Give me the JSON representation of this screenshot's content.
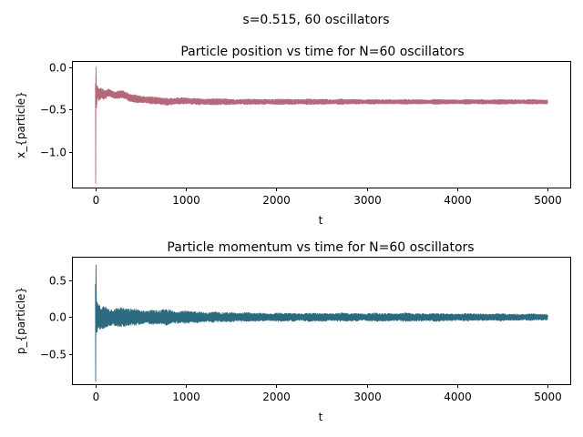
{
  "figure": {
    "suptitle": "s=0.515, 60 oscillators"
  },
  "chart_data": [
    {
      "type": "line",
      "title": "Particle position vs time for N=60 oscillators",
      "xlabel": "t",
      "ylabel": "x_{particle}",
      "xlim": [
        -250,
        5250
      ],
      "ylim": [
        -1.42,
        0.06
      ],
      "xticks": [
        0,
        1000,
        2000,
        3000,
        4000,
        5000
      ],
      "xtick_labels": [
        "0",
        "1000",
        "2000",
        "3000",
        "4000",
        "5000"
      ],
      "yticks": [
        0.0,
        -0.5,
        -1.0
      ],
      "ytick_labels": [
        "0.0",
        "−0.5",
        "−1.0"
      ],
      "grid": false,
      "series": [
        {
          "color": "#b5687a",
          "t_range": [
            0,
            5000
          ],
          "envelope": {
            "t": [
              0,
              5,
              10,
              20,
              40,
              60,
              100,
              150,
              200,
              300,
              400,
              500,
              600,
              700,
              800,
              900,
              1000,
              1200,
              1400,
              1600,
              1800,
              2000,
              2500,
              3000,
              3500,
              4000,
              4500,
              5000
            ],
            "mean": [
              -0.7,
              -0.5,
              -0.35,
              -0.3,
              -0.33,
              -0.31,
              -0.33,
              -0.3,
              -0.33,
              -0.32,
              -0.37,
              -0.38,
              -0.39,
              -0.4,
              -0.41,
              -0.4,
              -0.4,
              -0.41,
              -0.41,
              -0.41,
              -0.41,
              -0.41,
              -0.41,
              -0.41,
              -0.41,
              -0.41,
              -0.41,
              -0.41
            ],
            "amplitude": [
              0.68,
              0.5,
              0.18,
              0.09,
              0.08,
              0.07,
              0.06,
              0.06,
              0.05,
              0.05,
              0.05,
              0.05,
              0.045,
              0.045,
              0.05,
              0.045,
              0.04,
              0.04,
              0.04,
              0.035,
              0.035,
              0.035,
              0.035,
              0.03,
              0.03,
              0.03,
              0.03,
              0.028
            ]
          },
          "min": -1.37,
          "max": 0.0
        }
      ]
    },
    {
      "type": "line",
      "title": "Particle momentum vs time for N=60 oscillators",
      "xlabel": "t",
      "ylabel": "p_{particle}",
      "xlim": [
        -250,
        5250
      ],
      "ylim": [
        -0.9,
        0.8
      ],
      "xticks": [
        0,
        1000,
        2000,
        3000,
        4000,
        5000
      ],
      "xtick_labels": [
        "0",
        "1000",
        "2000",
        "3000",
        "4000",
        "5000"
      ],
      "yticks": [
        0.5,
        0.0,
        -0.5
      ],
      "ytick_labels": [
        "0.5",
        "0.0",
        "−0.5"
      ],
      "grid": false,
      "series": [
        {
          "color": "#2c6a80",
          "t_range": [
            0,
            5000
          ],
          "envelope": {
            "t": [
              0,
              5,
              10,
              20,
              40,
              60,
              100,
              150,
              200,
              300,
              400,
              500,
              600,
              700,
              800,
              900,
              1000,
              1200,
              1400,
              1600,
              1800,
              2000,
              2500,
              3000,
              3500,
              4000,
              4500,
              5000
            ],
            "mean": [
              -0.07,
              -0.05,
              0.0,
              0.0,
              0.0,
              0.0,
              0.0,
              0.0,
              0.0,
              0.0,
              0.0,
              0.0,
              0.0,
              0.0,
              0.0,
              0.0,
              0.0,
              0.0,
              0.0,
              0.0,
              0.0,
              0.0,
              0.0,
              0.0,
              0.0,
              0.0,
              0.0,
              0.0
            ],
            "amplitude": [
              0.78,
              0.6,
              0.3,
              0.22,
              0.18,
              0.16,
              0.16,
              0.15,
              0.14,
              0.14,
              0.12,
              0.12,
              0.1,
              0.1,
              0.12,
              0.1,
              0.09,
              0.08,
              0.07,
              0.07,
              0.06,
              0.06,
              0.06,
              0.06,
              0.06,
              0.055,
              0.05,
              0.045
            ]
          },
          "min": -0.86,
          "max": 0.7
        }
      ]
    }
  ]
}
